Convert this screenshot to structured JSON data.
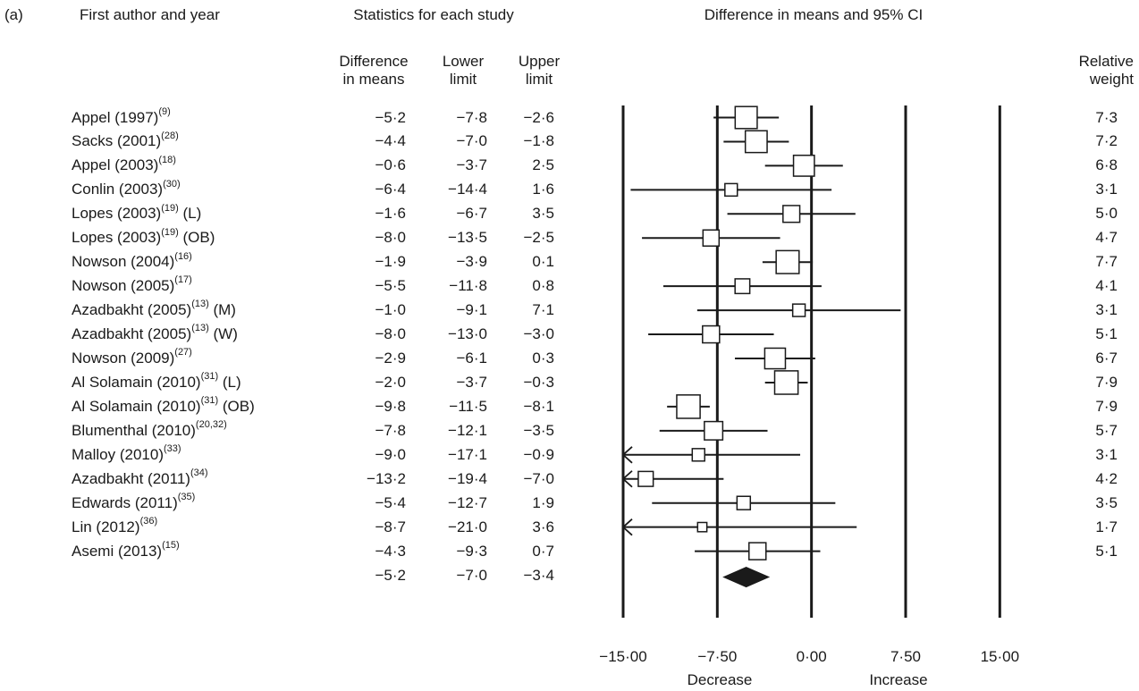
{
  "panel_label": "(a)",
  "headers": {
    "study": "First author and year",
    "stats": "Statistics for each study",
    "plot": "Difference in means and 95% CI",
    "diff": [
      "Difference",
      "in means"
    ],
    "lower": [
      "Lower",
      "limit"
    ],
    "upper": [
      "Upper",
      "limit"
    ],
    "weight": [
      "Relative",
      "weight"
    ]
  },
  "chart_data": {
    "type": "forest",
    "xlim": [
      -15,
      15
    ],
    "x_ticks": [
      -15,
      -7.5,
      0,
      7.5,
      15
    ],
    "x_tick_labels": [
      "−15·00",
      "−7·50",
      "0·00",
      "7·50",
      "15·00"
    ],
    "x_annotations": {
      "left": "Decrease",
      "right": "Increase"
    },
    "vertical_lines": [
      -15,
      -7.5,
      0,
      7.5,
      15
    ],
    "studies": [
      {
        "name": "Appel (1997)",
        "ref": "(9)",
        "suffix": "",
        "diff": -5.2,
        "lower": -7.8,
        "upper": -2.6,
        "weight": 7.3,
        "diff_txt": "−5·2",
        "lower_txt": "−7·8",
        "upper_txt": "−2·6",
        "weight_txt": "7·3"
      },
      {
        "name": "Sacks (2001)",
        "ref": "(28)",
        "suffix": "",
        "diff": -4.4,
        "lower": -7.0,
        "upper": -1.8,
        "weight": 7.2,
        "diff_txt": "−4·4",
        "lower_txt": "−7·0",
        "upper_txt": "−1·8",
        "weight_txt": "7·2"
      },
      {
        "name": "Appel (2003)",
        "ref": "(18)",
        "suffix": "",
        "diff": -0.6,
        "lower": -3.7,
        "upper": 2.5,
        "weight": 6.8,
        "diff_txt": "−0·6",
        "lower_txt": "−3·7",
        "upper_txt": "2·5",
        "weight_txt": "6·8"
      },
      {
        "name": "Conlin (2003)",
        "ref": "(30)",
        "suffix": "",
        "diff": -6.4,
        "lower": -14.4,
        "upper": 1.6,
        "weight": 3.1,
        "diff_txt": "−6·4",
        "lower_txt": "−14·4",
        "upper_txt": "1·6",
        "weight_txt": "3·1"
      },
      {
        "name": "Lopes (2003)",
        "ref": "(19)",
        "suffix": " (L)",
        "diff": -1.6,
        "lower": -6.7,
        "upper": 3.5,
        "weight": 5.0,
        "diff_txt": "−1·6",
        "lower_txt": "−6·7",
        "upper_txt": "3·5",
        "weight_txt": "5·0"
      },
      {
        "name": "Lopes (2003)",
        "ref": "(19)",
        "suffix": " (OB)",
        "diff": -8.0,
        "lower": -13.5,
        "upper": -2.5,
        "weight": 4.7,
        "diff_txt": "−8·0",
        "lower_txt": "−13·5",
        "upper_txt": "−2·5",
        "weight_txt": "4·7"
      },
      {
        "name": "Nowson (2004)",
        "ref": "(16)",
        "suffix": "",
        "diff": -1.9,
        "lower": -3.9,
        "upper": 0.1,
        "weight": 7.7,
        "diff_txt": "−1·9",
        "lower_txt": "−3·9",
        "upper_txt": "0·1",
        "weight_txt": "7·7"
      },
      {
        "name": "Nowson (2005)",
        "ref": "(17)",
        "suffix": "",
        "diff": -5.5,
        "lower": -11.8,
        "upper": 0.8,
        "weight": 4.1,
        "diff_txt": "−5·5",
        "lower_txt": "−11·8",
        "upper_txt": "0·8",
        "weight_txt": "4·1"
      },
      {
        "name": "Azadbakht (2005)",
        "ref": "(13)",
        "suffix": " (M)",
        "diff": -1.0,
        "lower": -9.1,
        "upper": 7.1,
        "weight": 3.1,
        "diff_txt": "−1·0",
        "lower_txt": "−9·1",
        "upper_txt": "7·1",
        "weight_txt": "3·1"
      },
      {
        "name": "Azadbakht (2005)",
        "ref": "(13)",
        "suffix": " (W)",
        "diff": -8.0,
        "lower": -13.0,
        "upper": -3.0,
        "weight": 5.1,
        "diff_txt": "−8·0",
        "lower_txt": "−13·0",
        "upper_txt": "−3·0",
        "weight_txt": "5·1"
      },
      {
        "name": "Nowson (2009)",
        "ref": "(27)",
        "suffix": "",
        "diff": -2.9,
        "lower": -6.1,
        "upper": 0.3,
        "weight": 6.7,
        "diff_txt": "−2·9",
        "lower_txt": "−6·1",
        "upper_txt": "0·3",
        "weight_txt": "6·7"
      },
      {
        "name": "Al Solamain (2010)",
        "ref": "(31)",
        "suffix": " (L)",
        "diff": -2.0,
        "lower": -3.7,
        "upper": -0.3,
        "weight": 7.9,
        "diff_txt": "−2·0",
        "lower_txt": "−3·7",
        "upper_txt": "−0·3",
        "weight_txt": "7·9"
      },
      {
        "name": "Al Solamain (2010)",
        "ref": "(31)",
        "suffix": " (OB)",
        "diff": -9.8,
        "lower": -11.5,
        "upper": -8.1,
        "weight": 7.9,
        "diff_txt": "−9·8",
        "lower_txt": "−11·5",
        "upper_txt": "−8·1",
        "weight_txt": "7·9"
      },
      {
        "name": "Blumenthal (2010)",
        "ref": "(20,32)",
        "suffix": "",
        "diff": -7.8,
        "lower": -12.1,
        "upper": -3.5,
        "weight": 5.7,
        "diff_txt": "−7·8",
        "lower_txt": "−12·1",
        "upper_txt": "−3·5",
        "weight_txt": "5·7"
      },
      {
        "name": "Malloy (2010)",
        "ref": "(33)",
        "suffix": "",
        "diff": -9.0,
        "lower": -17.1,
        "upper": -0.9,
        "weight": 3.1,
        "diff_txt": "−9·0",
        "lower_txt": "−17·1",
        "upper_txt": "−0·9",
        "weight_txt": "3·1"
      },
      {
        "name": "Azadbakht (2011)",
        "ref": "(34)",
        "suffix": "",
        "diff": -13.2,
        "lower": -19.4,
        "upper": -7.0,
        "weight": 4.2,
        "diff_txt": "−13·2",
        "lower_txt": "−19·4",
        "upper_txt": "−7·0",
        "weight_txt": "4·2"
      },
      {
        "name": "Edwards (2011)",
        "ref": "(35)",
        "suffix": "",
        "diff": -5.4,
        "lower": -12.7,
        "upper": 1.9,
        "weight": 3.5,
        "diff_txt": "−5·4",
        "lower_txt": "−12·7",
        "upper_txt": "1·9",
        "weight_txt": "3·5"
      },
      {
        "name": "Lin (2012)",
        "ref": "(36)",
        "suffix": "",
        "diff": -8.7,
        "lower": -21.0,
        "upper": 3.6,
        "weight": 1.7,
        "diff_txt": "−8·7",
        "lower_txt": "−21·0",
        "upper_txt": "3·6",
        "weight_txt": "1·7"
      },
      {
        "name": "Asemi (2013)",
        "ref": "(15)",
        "suffix": "",
        "diff": -4.3,
        "lower": -9.3,
        "upper": 0.7,
        "weight": 5.1,
        "diff_txt": "−4·3",
        "lower_txt": "−9·3",
        "upper_txt": "0·7",
        "weight_txt": "5·1"
      }
    ],
    "summary": {
      "diff": -5.2,
      "lower": -7.0,
      "upper": -3.4,
      "diff_txt": "−5·2",
      "lower_txt": "−7·0",
      "upper_txt": "−3·4"
    }
  }
}
